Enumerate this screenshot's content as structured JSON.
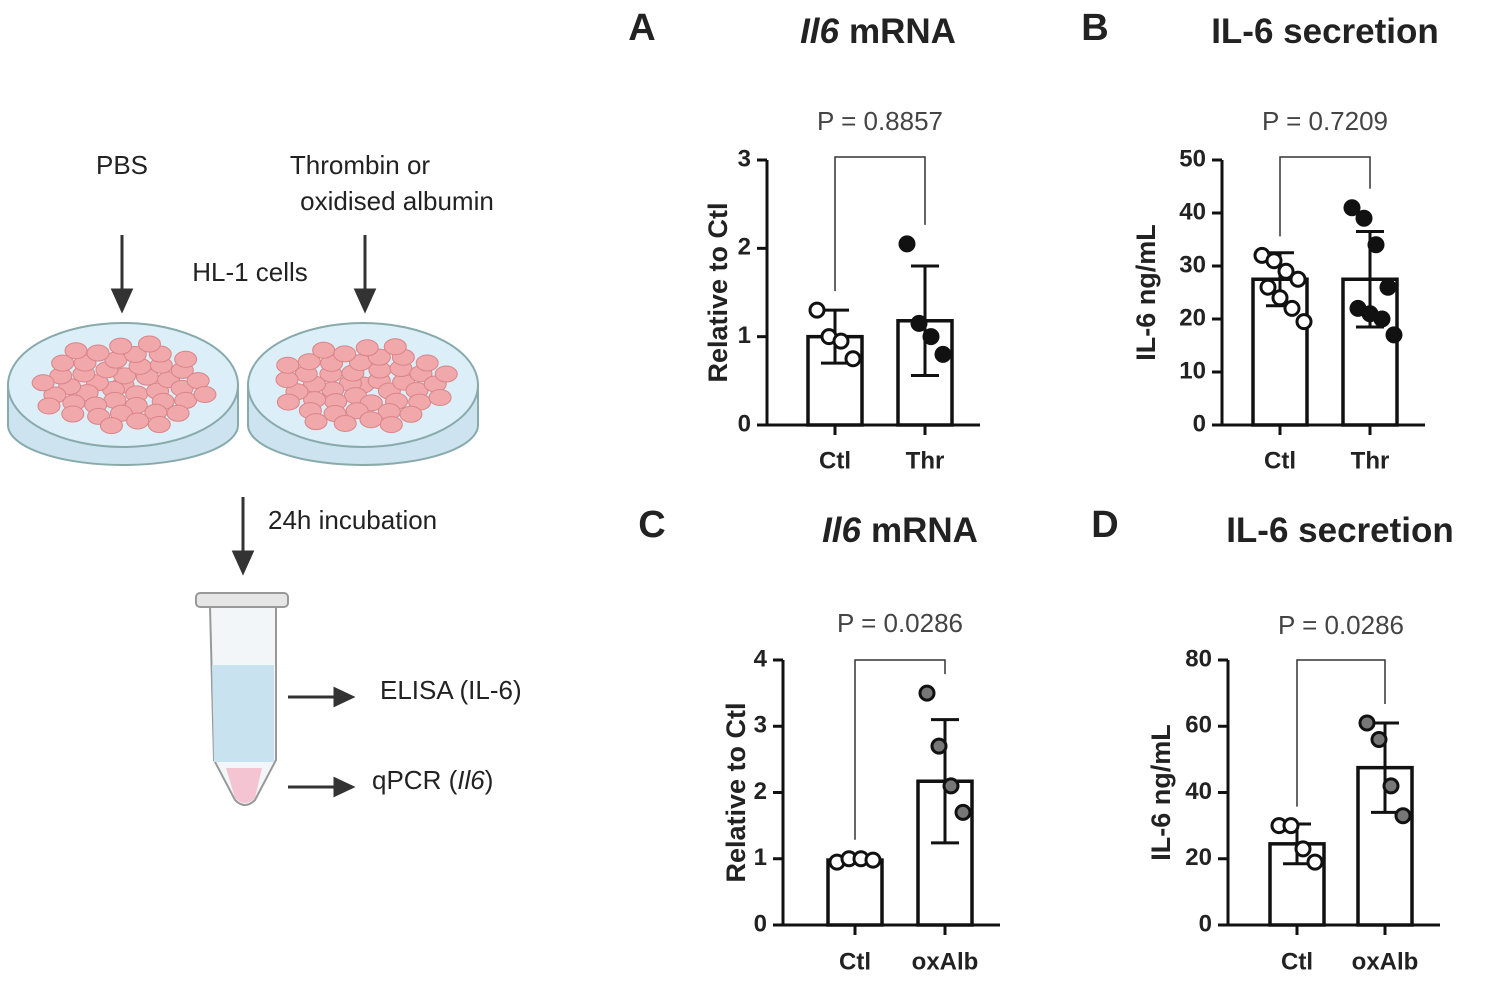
{
  "diagram": {
    "left_label": "PBS",
    "right_label": [
      "Thrombin or",
      "oxidised albumin"
    ],
    "cells_label": "HL-1 cells",
    "incubation_label": "24h incubation",
    "elisa_label": "ELISA (IL-6)",
    "qpcr_label": [
      "qPCR (",
      "Il6",
      ")"
    ]
  },
  "chart_data": [
    {
      "type": "bar",
      "panel": "A",
      "title": [
        "Il6",
        "mRNA"
      ],
      "ylabel": "Relative to Ctl",
      "annotation": "P = 0.8857",
      "categories": [
        "Ctl",
        "Thr"
      ],
      "values": [
        1.0,
        1.18
      ],
      "errors": [
        0.3,
        0.62
      ],
      "points": [
        [
          1.3,
          1.0,
          0.95,
          0.75
        ],
        [
          2.05,
          1.15,
          1.0,
          0.8
        ]
      ],
      "point_colors": [
        "#ffffff",
        "#111111"
      ],
      "ylim": [
        0,
        3
      ],
      "yticks": [
        0,
        1,
        2,
        3
      ]
    },
    {
      "type": "bar",
      "panel": "B",
      "title": [
        "IL-6 secretion"
      ],
      "ylabel": "IL-6 ng/mL",
      "annotation": "P = 0.7209",
      "categories": [
        "Ctl",
        "Thr"
      ],
      "values": [
        27.5,
        27.5
      ],
      "errors": [
        5,
        9
      ],
      "points": [
        [
          32,
          31,
          29,
          27.5,
          26,
          24,
          22,
          19.5
        ],
        [
          41,
          39,
          34,
          26,
          22,
          21,
          20,
          17
        ]
      ],
      "point_colors": [
        "#ffffff",
        "#111111"
      ],
      "ylim": [
        0,
        50
      ],
      "yticks": [
        0,
        10,
        20,
        30,
        40,
        50
      ]
    },
    {
      "type": "bar",
      "panel": "C",
      "title": [
        "Il6",
        "mRNA"
      ],
      "ylabel": "Relative to Ctl",
      "annotation": "P = 0.0286",
      "categories": [
        "Ctl",
        "oxAlb"
      ],
      "values": [
        0.98,
        2.17
      ],
      "errors": [
        0.05,
        0.93
      ],
      "points": [
        [
          0.95,
          1.0,
          1.0,
          0.98
        ],
        [
          3.5,
          2.7,
          2.1,
          1.7
        ]
      ],
      "point_colors": [
        "#ffffff",
        "#777777"
      ],
      "ylim": [
        0,
        4
      ],
      "yticks": [
        0,
        1,
        2,
        3,
        4
      ]
    },
    {
      "type": "bar",
      "panel": "D",
      "title": [
        "IL-6 secretion"
      ],
      "ylabel": "IL-6 ng/mL",
      "annotation": "P = 0.0286",
      "categories": [
        "Ctl",
        "oxAlb"
      ],
      "values": [
        24.5,
        47.5
      ],
      "errors": [
        6,
        13.5
      ],
      "points": [
        [
          30,
          30,
          23,
          19
        ],
        [
          61,
          56,
          42,
          33
        ]
      ],
      "point_colors": [
        "#ffffff",
        "#777777"
      ],
      "ylim": [
        0,
        80
      ],
      "yticks": [
        0,
        20,
        40,
        60,
        80
      ]
    }
  ]
}
